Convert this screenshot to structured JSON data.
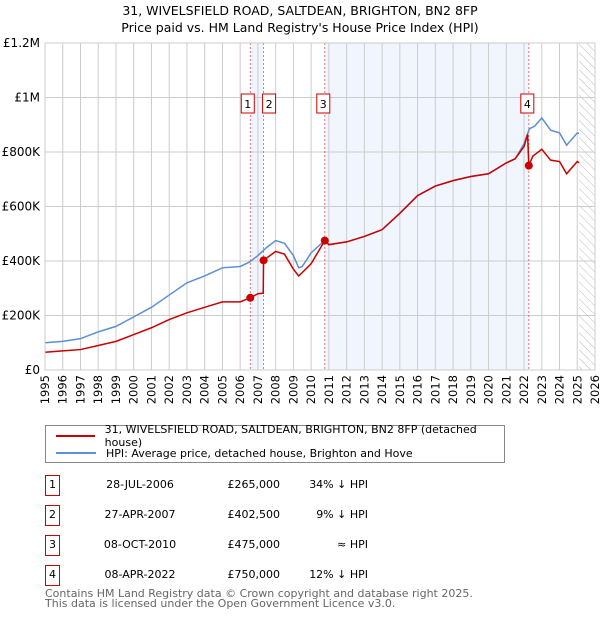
{
  "chart_data": {
    "type": "line",
    "title": "31, WIVELSFIELD ROAD, SALTDEAN, BRIGHTON, BN2 8FP",
    "subtitle": "Price paid vs. HM Land Registry's House Price Index (HPI)",
    "xlim": [
      1995,
      2026
    ],
    "ylim": [
      0,
      1200000
    ],
    "x_ticks": [
      "1995",
      "1996",
      "1997",
      "1998",
      "1999",
      "2000",
      "2001",
      "2002",
      "2003",
      "2004",
      "2005",
      "2006",
      "2007",
      "2008",
      "2009",
      "2010",
      "2011",
      "2012",
      "2013",
      "2014",
      "2015",
      "2016",
      "2017",
      "2018",
      "2019",
      "2020",
      "2021",
      "2022",
      "2023",
      "2024",
      "2025",
      "2026"
    ],
    "y_ticks": [
      {
        "v": 0,
        "label": "£0"
      },
      {
        "v": 200000,
        "label": "£200K"
      },
      {
        "v": 400000,
        "label": "£400K"
      },
      {
        "v": 600000,
        "label": "£600K"
      },
      {
        "v": 800000,
        "label": "£800K"
      },
      {
        "v": 1000000,
        "label": "£1M"
      },
      {
        "v": 1200000,
        "label": "£1.2M"
      }
    ],
    "grid": true,
    "series": [
      {
        "name": "31, WIVELSFIELD ROAD, SALTDEAN, BRIGHTON, BN2 8FP (detached house)",
        "color": "#cc0000",
        "x": [
          1995,
          1996,
          1997,
          1998,
          1999,
          2000,
          2001,
          2002,
          2003,
          2004,
          2005,
          2006,
          2006.57,
          2007,
          2007.3,
          2007.32,
          2008,
          2008.5,
          2009,
          2009.3,
          2010,
          2010.77,
          2011,
          2012,
          2013,
          2014,
          2015,
          2016,
          2017,
          2018,
          2019,
          2020,
          2021,
          2021.5,
          2022,
          2022.2,
          2022.27,
          2022.5,
          2023,
          2023.5,
          2024,
          2024.4,
          2025,
          2025.1
        ],
        "y": [
          65000,
          70000,
          75000,
          90000,
          105000,
          130000,
          155000,
          185000,
          210000,
          230000,
          250000,
          250000,
          265000,
          280000,
          282000,
          402500,
          435000,
          425000,
          370000,
          345000,
          390000,
          475000,
          460000,
          470000,
          490000,
          515000,
          575000,
          640000,
          675000,
          695000,
          710000,
          720000,
          760000,
          775000,
          820000,
          865000,
          750000,
          785000,
          810000,
          770000,
          765000,
          720000,
          765000,
          760000
        ]
      },
      {
        "name": "HPI: Average price, detached house, Brighton and Hove",
        "color": "#5b8fd4",
        "x": [
          1995,
          1996,
          1997,
          1998,
          1999,
          2000,
          2001,
          2002,
          2003,
          2004,
          2005,
          2006,
          2006.5,
          2007,
          2007.5,
          2008,
          2008.5,
          2009,
          2009.3,
          2009.5,
          2010,
          2010.5,
          2010.8,
          2011,
          2012,
          2013,
          2014,
          2015,
          2016,
          2017,
          2018,
          2019,
          2020,
          2021,
          2021.5,
          2022,
          2022.3,
          2022.6,
          2023,
          2023.5,
          2024,
          2024.4,
          2025,
          2025.1
        ],
        "y": [
          100000,
          105000,
          115000,
          140000,
          160000,
          195000,
          230000,
          275000,
          320000,
          345000,
          375000,
          380000,
          395000,
          420000,
          450000,
          475000,
          465000,
          420000,
          375000,
          380000,
          430000,
          460000,
          475000,
          460000,
          470000,
          490000,
          515000,
          575000,
          640000,
          675000,
          695000,
          710000,
          720000,
          760000,
          775000,
          830000,
          885000,
          895000,
          925000,
          880000,
          870000,
          825000,
          870000,
          868000
        ]
      }
    ],
    "sales": [
      {
        "n": "1",
        "x": 2006.57,
        "y": 265000
      },
      {
        "n": "2",
        "x": 2007.32,
        "y": 402500
      },
      {
        "n": "3",
        "x": 2010.77,
        "y": 475000
      },
      {
        "n": "4",
        "x": 2022.27,
        "y": 750000
      }
    ],
    "shaded": [
      [
        2006.57,
        2007.32
      ],
      [
        2010.77,
        2022.27
      ]
    ],
    "forecast_from": 2025.1
  },
  "legend": [
    "31, WIVELSFIELD ROAD, SALTDEAN, BRIGHTON, BN2 8FP (detached house)",
    "HPI: Average price, detached house, Brighton and Hove"
  ],
  "table": [
    {
      "n": "1",
      "date": "28-JUL-2006",
      "price": "£265,000",
      "hpi": "34% ↓ HPI"
    },
    {
      "n": "2",
      "date": "27-APR-2007",
      "price": "£402,500",
      "hpi": "9% ↓ HPI"
    },
    {
      "n": "3",
      "date": "08-OCT-2010",
      "price": "£475,000",
      "hpi": "≈ HPI"
    },
    {
      "n": "4",
      "date": "08-APR-2022",
      "price": "£750,000",
      "hpi": "12% ↓ HPI"
    }
  ],
  "footer": [
    "Contains HM Land Registry data © Crown copyright and database right 2025.",
    "This data is licensed under the Open Government Licence v3.0."
  ]
}
